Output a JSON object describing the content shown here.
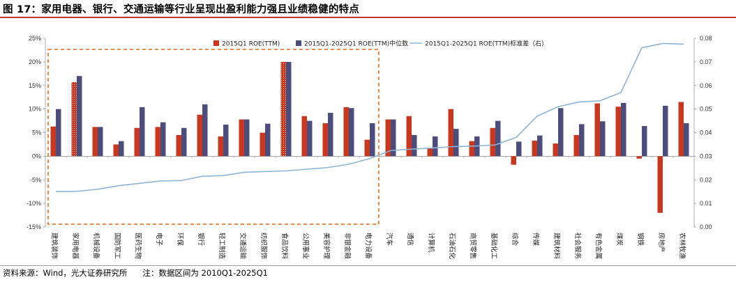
{
  "title": "图 17：家用电器、银行、交通运输等行业呈现出盈利能力强且业绩稳健的特点",
  "footer": {
    "source": "资料来源：Wind，光大证券研究所",
    "note": "注：数据区间为 2010Q1-2025Q1"
  },
  "colors": {
    "roe2015": "#c8381e",
    "median": "#4d4d7d",
    "std": "#8db4d6",
    "highlight": "#ed7d31"
  },
  "chart_data": {
    "type": "bar",
    "title": "图 17：家用电器、银行、交通运输等行业呈现出盈利能力强且业绩稳健的特点",
    "xlabel": "",
    "ylabel": "",
    "ylim": [
      -0.15,
      0.25
    ],
    "y_ticks": [
      "25%",
      "20%",
      "15%",
      "10%",
      "5%",
      "0%",
      "-5%",
      "-10%",
      "-15%"
    ],
    "y2lim": [
      0.0,
      0.08
    ],
    "y2_ticks": [
      "0.08",
      "0.07",
      "0.06",
      "0.05",
      "0.04",
      "0.03",
      "0.02",
      "0.01",
      "0.00"
    ],
    "legend_position": "top",
    "highlight_range": "建筑装饰 - 电力设备",
    "categories": [
      "建筑装饰",
      "家用电器",
      "机械设备",
      "国防军工",
      "医药生物",
      "电子",
      "环保",
      "银行",
      "轻工制造",
      "交通运输",
      "纺织服饰",
      "食品饮料",
      "公用事业",
      "美容护理",
      "非银金融",
      "电力设备",
      "汽车",
      "通信",
      "计算机",
      "石油石化",
      "商贸零售",
      "基础化工",
      "综合",
      "传媒",
      "建筑材料",
      "社会服务",
      "有色金属",
      "煤炭",
      "钢铁",
      "房地产",
      "农林牧渔"
    ],
    "series": [
      {
        "name": "2015Q1 ROE(TTM)",
        "type": "bar",
        "axis": "left",
        "values": [
          0.063,
          0.157,
          0.062,
          0.025,
          0.06,
          0.062,
          0.045,
          0.088,
          0.042,
          0.078,
          0.05,
          0.2,
          0.085,
          0.07,
          0.104,
          0.035,
          0.078,
          0.085,
          0.018,
          0.1,
          0.032,
          0.06,
          -0.018,
          0.033,
          0.027,
          0.045,
          0.112,
          0.105,
          -0.005,
          -0.12,
          0.115
        ]
      },
      {
        "name": "2015Q1-2025Q1 ROE(TTM)中位数",
        "type": "bar",
        "axis": "left",
        "values": [
          0.1,
          0.17,
          0.062,
          0.032,
          0.104,
          0.072,
          0.06,
          0.11,
          0.067,
          0.078,
          0.069,
          0.2,
          0.075,
          0.092,
          0.102,
          0.07,
          0.078,
          0.045,
          0.042,
          0.058,
          0.042,
          0.075,
          0.031,
          0.044,
          0.102,
          0.068,
          0.074,
          0.113,
          0.064,
          0.107,
          0.07
        ]
      },
      {
        "name": "2015Q1-2025Q1 ROE(TTM)标准差（右）",
        "type": "line",
        "axis": "right",
        "values": [
          0.015,
          0.0151,
          0.016,
          0.0175,
          0.0185,
          0.0195,
          0.0197,
          0.0215,
          0.0218,
          0.0232,
          0.0235,
          0.0238,
          0.0245,
          0.0252,
          0.0266,
          0.029,
          0.0324,
          0.033,
          0.0335,
          0.0341,
          0.0343,
          0.0348,
          0.038,
          0.047,
          0.051,
          0.053,
          0.0535,
          0.057,
          0.076,
          0.0778,
          0.0775
        ]
      }
    ]
  }
}
